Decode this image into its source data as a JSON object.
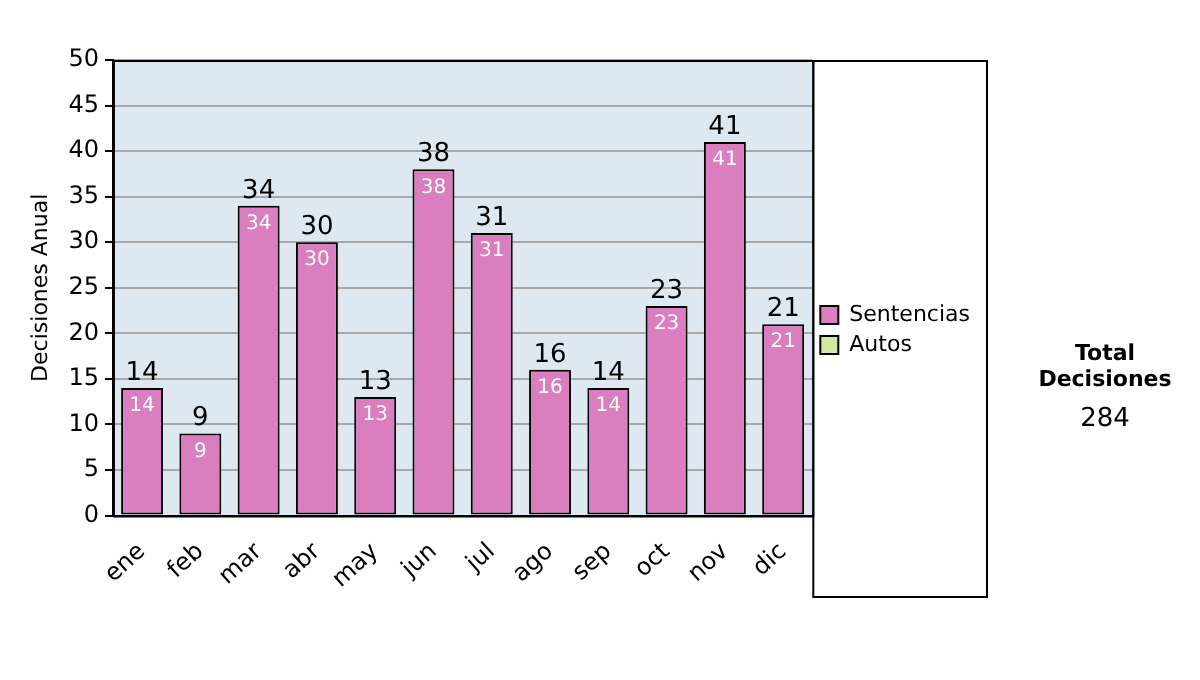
{
  "chart_data": {
    "type": "bar",
    "ylabel": "Decisiones Anual",
    "categories": [
      "ene",
      "feb",
      "mar",
      "abr",
      "may",
      "jun",
      "jul",
      "ago",
      "sep",
      "oct",
      "nov",
      "dic"
    ],
    "series": [
      {
        "name": "Sentencias",
        "color": "#da7ebf",
        "values": [
          14,
          9,
          34,
          30,
          13,
          38,
          31,
          16,
          14,
          23,
          41,
          21
        ]
      },
      {
        "name": "Autos",
        "color": "#d6e8a0",
        "values": [
          null,
          null,
          null,
          null,
          null,
          null,
          null,
          null,
          null,
          null,
          null,
          null
        ]
      }
    ],
    "stacked": true,
    "data_labels": true,
    "totals": [
      "14",
      "9",
      "34",
      "30",
      "13",
      "38",
      "31",
      "16",
      "14",
      "23",
      "41",
      "21"
    ],
    "ylim": [
      0,
      50
    ],
    "yticks": [
      0,
      5,
      10,
      15,
      20,
      25,
      30,
      35,
      40,
      45,
      50
    ],
    "grid": "y",
    "legend": "right",
    "annotations": [
      "Total Decisiones",
      "284"
    ]
  }
}
